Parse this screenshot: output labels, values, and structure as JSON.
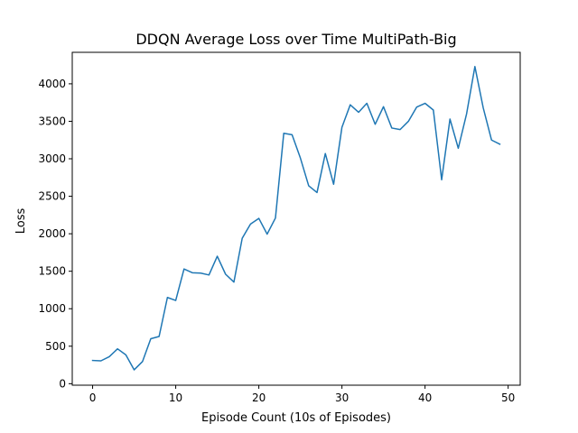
{
  "chart_data": {
    "type": "line",
    "title": "DDQN Average Loss over Time MultiPath-Big",
    "xlabel": "Episode Count (10s of Episodes)",
    "ylabel": "Loss",
    "xlim": [
      -2.45,
      51.45
    ],
    "ylim": [
      -20,
      4420
    ],
    "xticks": [
      0,
      10,
      20,
      30,
      40,
      50
    ],
    "yticks": [
      0,
      500,
      1000,
      1500,
      2000,
      2500,
      3000,
      3500,
      4000
    ],
    "grid": false,
    "series": [
      {
        "color": "#1f77b4",
        "x": [
          0,
          1,
          2,
          3,
          4,
          5,
          6,
          7,
          8,
          9,
          10,
          11,
          12,
          13,
          14,
          15,
          16,
          17,
          18,
          19,
          20,
          21,
          22,
          23,
          24,
          25,
          26,
          27,
          28,
          29,
          30,
          31,
          32,
          33,
          34,
          35,
          36,
          37,
          38,
          39,
          40,
          41,
          42,
          43,
          44,
          45,
          46,
          47,
          48,
          49
        ],
        "y": [
          310,
          305,
          360,
          465,
          385,
          185,
          295,
          600,
          630,
          1150,
          1110,
          1530,
          1480,
          1475,
          1450,
          1700,
          1460,
          1355,
          1940,
          2130,
          2205,
          1995,
          2210,
          3340,
          3320,
          3010,
          2640,
          2550,
          3070,
          2660,
          3420,
          3720,
          3620,
          3740,
          3460,
          3695,
          3410,
          3390,
          3500,
          3690,
          3740,
          3650,
          2720,
          3530,
          3140,
          3600,
          4230,
          3680,
          3250,
          3195
        ]
      }
    ]
  }
}
